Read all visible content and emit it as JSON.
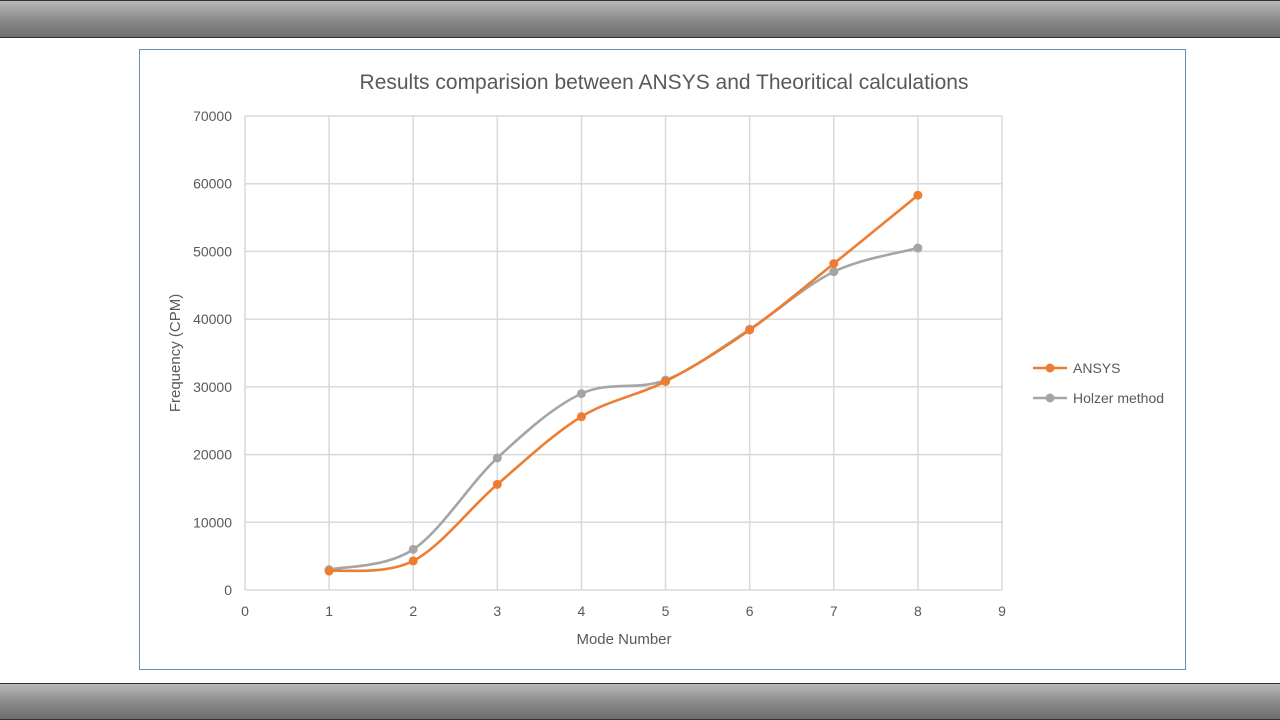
{
  "chart_data": {
    "type": "line",
    "title": "Results comparision between ANSYS and Theoritical calculations",
    "xlabel": "Mode Number",
    "ylabel": "Frequency (CPM)",
    "xlim": [
      0,
      9
    ],
    "ylim": [
      0,
      70000
    ],
    "x_ticks": [
      0,
      1,
      2,
      3,
      4,
      5,
      6,
      7,
      8,
      9
    ],
    "y_ticks": [
      0,
      10000,
      20000,
      30000,
      40000,
      50000,
      60000,
      70000
    ],
    "grid": true,
    "smooth": true,
    "legend_position": "right",
    "x": [
      1,
      2,
      3,
      4,
      5,
      6,
      7,
      8
    ],
    "series": [
      {
        "name": "ANSYS",
        "color": "#ED7D31",
        "values": [
          2800,
          4300,
          15600,
          25600,
          30800,
          38400,
          48200,
          58300
        ]
      },
      {
        "name": "Holzer method",
        "color": "#A5A5A5",
        "values": [
          3000,
          6000,
          19500,
          29000,
          31000,
          38500,
          47000,
          50500
        ]
      }
    ]
  }
}
